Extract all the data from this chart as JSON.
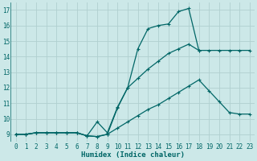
{
  "xlabel": "Humidex (Indice chaleur)",
  "xlim": [
    -0.5,
    23.5
  ],
  "ylim": [
    8.5,
    17.5
  ],
  "yticks": [
    9,
    10,
    11,
    12,
    13,
    14,
    15,
    16,
    17
  ],
  "xticks": [
    0,
    1,
    2,
    3,
    4,
    5,
    6,
    7,
    8,
    9,
    10,
    11,
    12,
    13,
    14,
    15,
    16,
    17,
    18,
    19,
    20,
    21,
    22,
    23
  ],
  "bg_color": "#cce8e8",
  "line_color": "#006666",
  "grid_color": "#b0d0d0",
  "line1_x": [
    0,
    1,
    2,
    3,
    4,
    5,
    6,
    7,
    8,
    9,
    10,
    11,
    12,
    13,
    14,
    15,
    16,
    17,
    18,
    19,
    20,
    21,
    22,
    23
  ],
  "line1_y": [
    9.0,
    9.0,
    9.1,
    9.1,
    9.1,
    9.1,
    9.1,
    8.9,
    8.85,
    9.0,
    9.4,
    9.8,
    10.2,
    10.6,
    10.9,
    11.3,
    11.7,
    12.1,
    12.5,
    11.8,
    11.1,
    10.4,
    10.3,
    10.3
  ],
  "line2_x": [
    0,
    1,
    2,
    3,
    4,
    5,
    6,
    7,
    8,
    9,
    10,
    11,
    12,
    13,
    14,
    15,
    16,
    17,
    18
  ],
  "line2_y": [
    9.0,
    9.0,
    9.1,
    9.1,
    9.1,
    9.1,
    9.1,
    8.9,
    8.85,
    9.0,
    10.7,
    12.0,
    14.5,
    15.8,
    16.0,
    16.1,
    16.9,
    17.1,
    14.4
  ],
  "line3_x": [
    0,
    1,
    2,
    3,
    4,
    5,
    6,
    7,
    8,
    9,
    10,
    11,
    12,
    13,
    14,
    15,
    16,
    17,
    18,
    19,
    20,
    21,
    22,
    23
  ],
  "line3_y": [
    9.0,
    9.0,
    9.1,
    9.1,
    9.1,
    9.1,
    9.1,
    8.9,
    9.8,
    9.1,
    10.75,
    12.0,
    12.6,
    13.2,
    13.7,
    14.2,
    14.5,
    14.8,
    14.4,
    14.4,
    14.4,
    14.4,
    14.4,
    14.4
  ]
}
